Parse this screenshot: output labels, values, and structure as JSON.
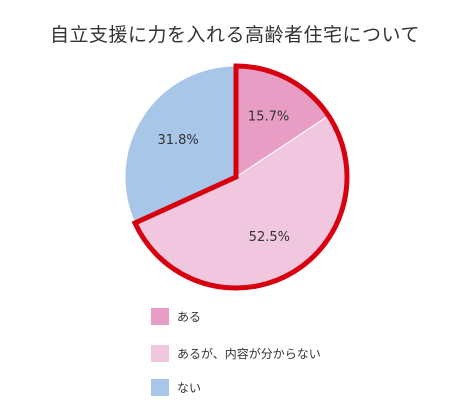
{
  "chart_data": {
    "type": "pie",
    "title": "自立支援に力を入れる高齢者住宅について",
    "start_angle_deg": 0,
    "direction": "clockwise",
    "slices": [
      {
        "label": "ある",
        "value": 15.7,
        "display": "15.7%",
        "color": "#e89ec4",
        "highlighted": true
      },
      {
        "label": "あるが、内容が分からない",
        "value": 52.5,
        "display": "52.5%",
        "color": "#f1c7e0",
        "highlighted": true
      },
      {
        "label": "ない",
        "value": 31.8,
        "display": "31.8%",
        "color": "#a8c6e8",
        "highlighted": false
      }
    ],
    "highlight_outline_color": "#d7000f",
    "legend_position": "bottom-left"
  }
}
